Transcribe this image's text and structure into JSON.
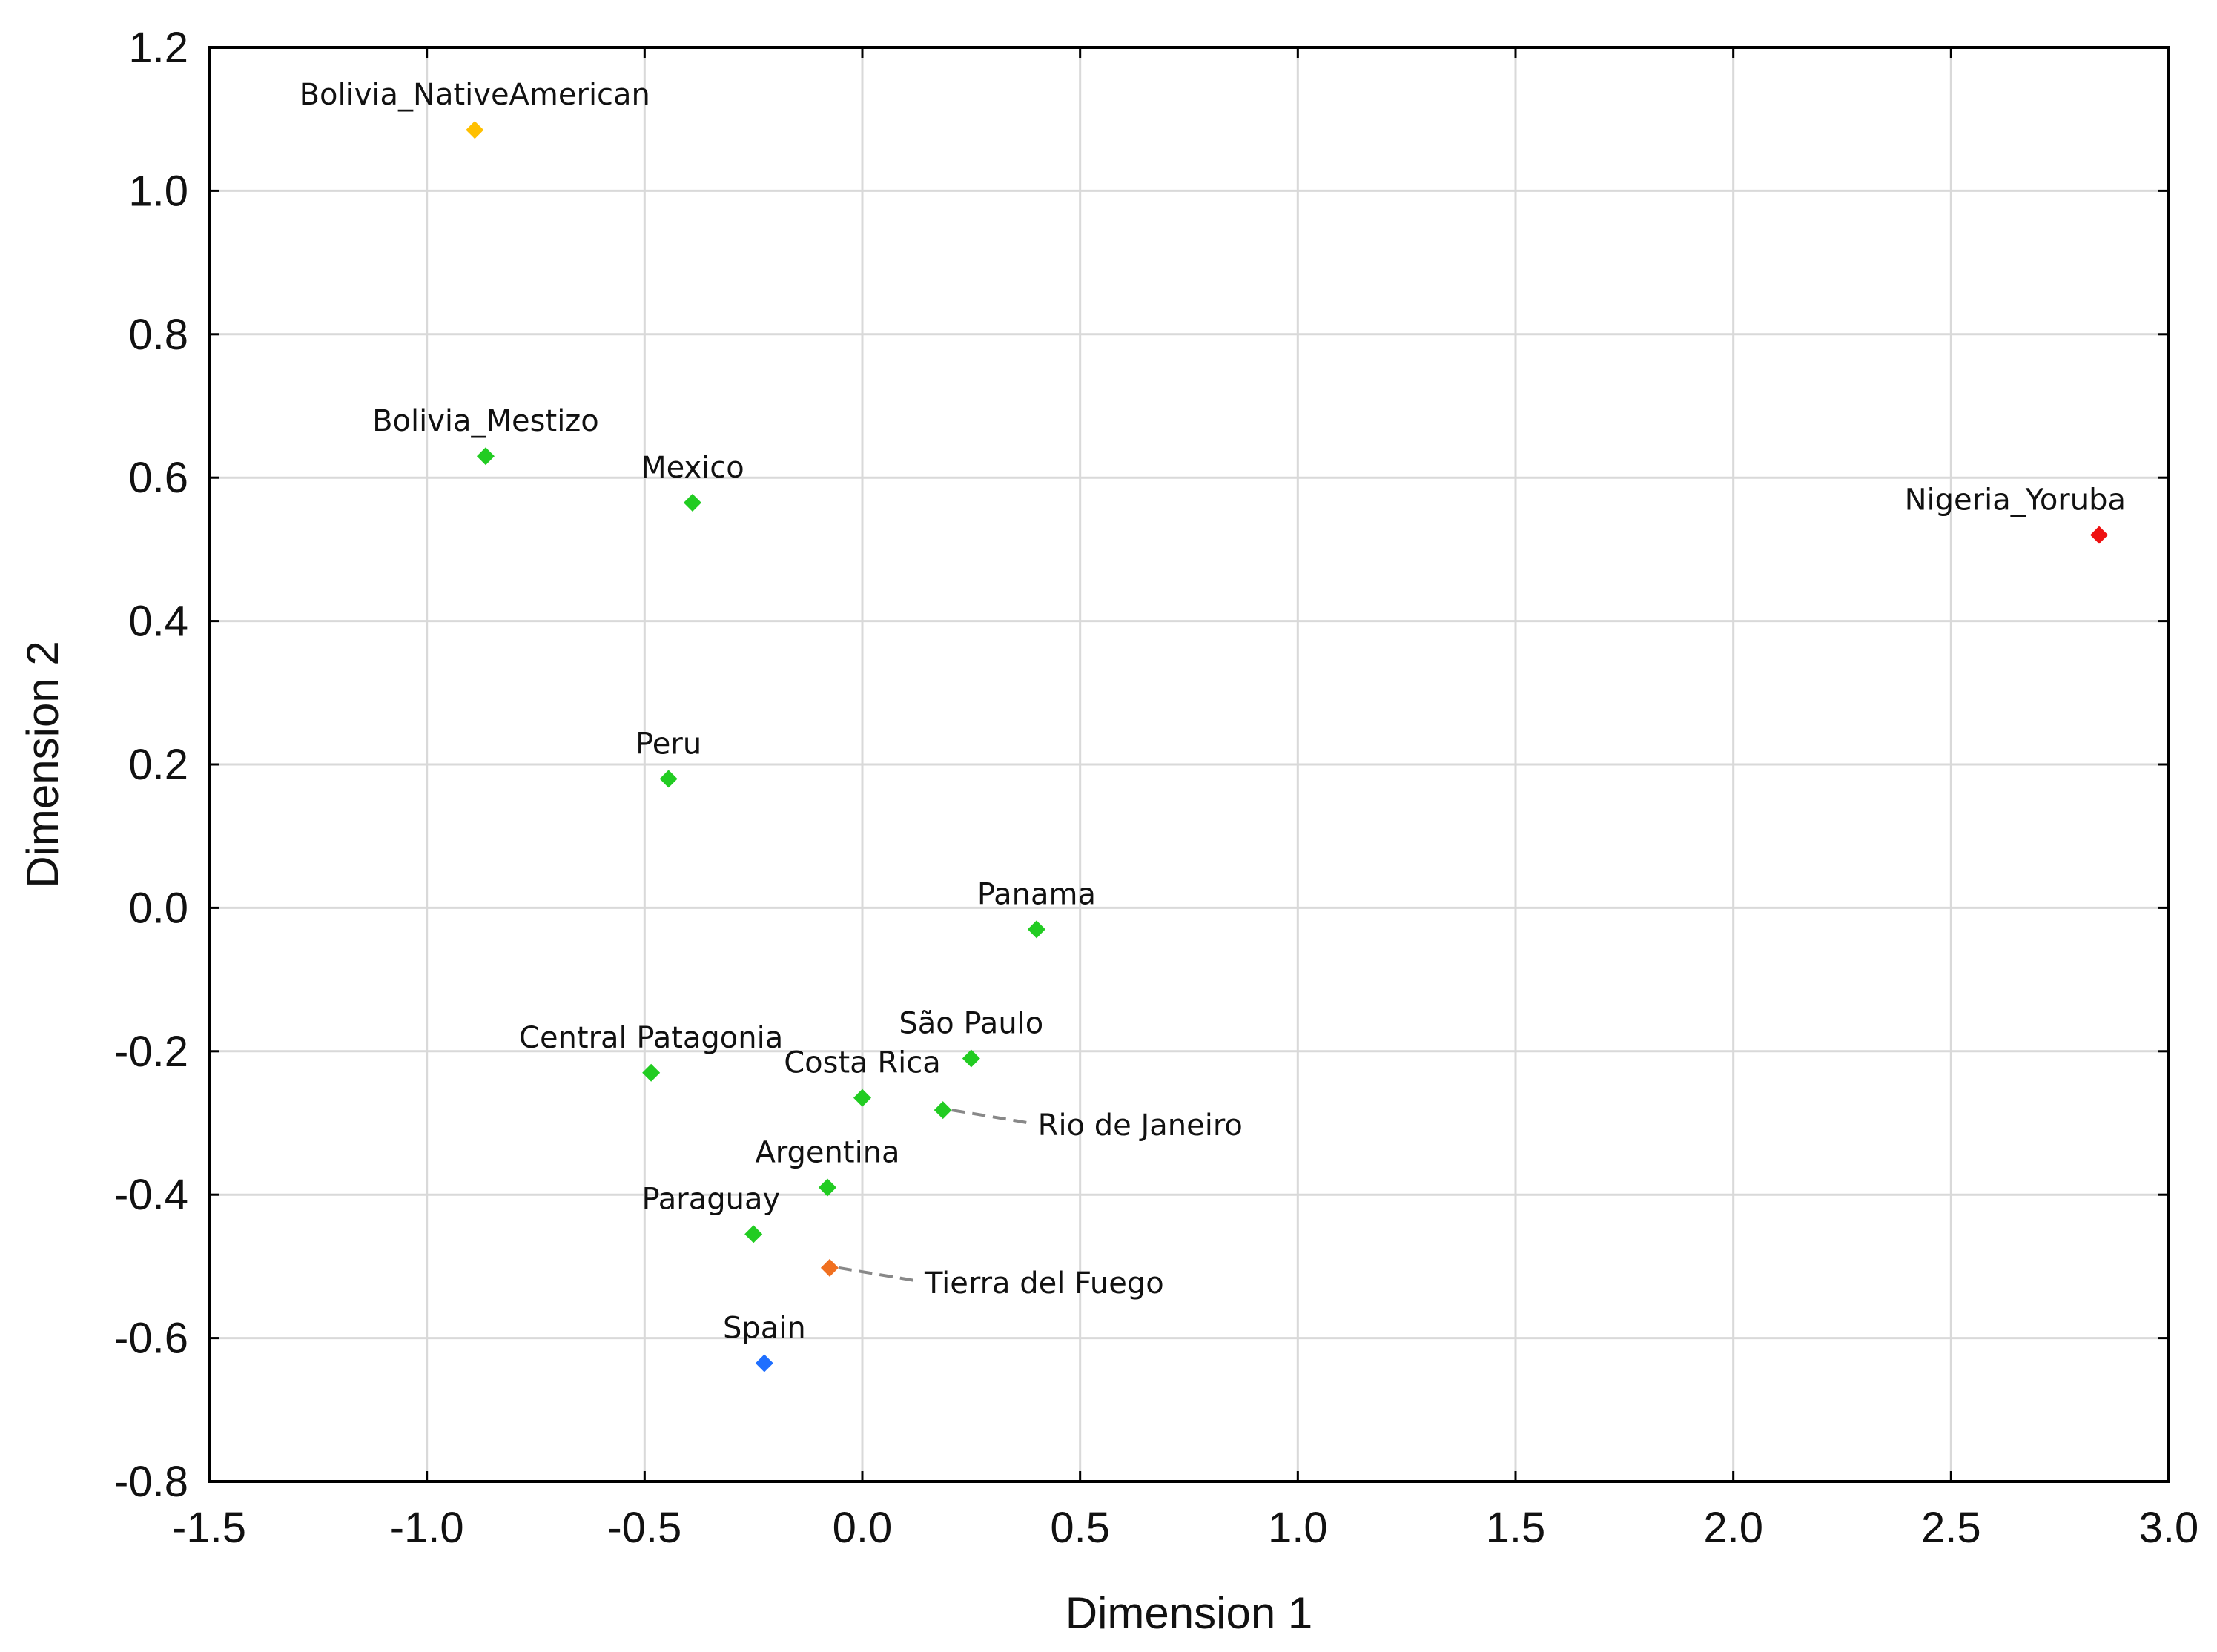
{
  "chart_data": {
    "type": "scatter",
    "title": "",
    "xlabel": "Dimension 1",
    "ylabel": "Dimension 2",
    "xlim": [
      -1.5,
      3.0
    ],
    "ylim": [
      -0.8,
      1.2
    ],
    "xticks": [
      "-1.5",
      "-1.0",
      "-0.5",
      "0.0",
      "0.5",
      "1.0",
      "1.5",
      "2.0",
      "2.5",
      "3.0"
    ],
    "yticks": [
      "-0.8",
      "-0.6",
      "-0.4",
      "-0.2",
      "0.0",
      "0.2",
      "0.4",
      "0.6",
      "0.8",
      "1.0",
      "1.2"
    ],
    "grid": true,
    "colors": {
      "green": "#22cc22",
      "yellow": "#ffc000",
      "red": "#ee1111",
      "orange": "#f07020",
      "blue": "#1f6fff"
    },
    "points": [
      {
        "label": "Bolivia_NativeAmerican",
        "x": -0.89,
        "y": 1.085,
        "color": "yellow",
        "label_pos": "above"
      },
      {
        "label": "Bolivia_Mestizo",
        "x": -0.865,
        "y": 0.63,
        "color": "green",
        "label_pos": "above"
      },
      {
        "label": "Mexico",
        "x": -0.39,
        "y": 0.565,
        "color": "green",
        "label_pos": "above"
      },
      {
        "label": "Nigeria_Yoruba",
        "x": 2.84,
        "y": 0.52,
        "color": "red",
        "label_pos": "above-left"
      },
      {
        "label": "Peru",
        "x": -0.445,
        "y": 0.18,
        "color": "green",
        "label_pos": "above"
      },
      {
        "label": "Panama",
        "x": 0.4,
        "y": -0.03,
        "color": "green",
        "label_pos": "above"
      },
      {
        "label": "Central Patagonia",
        "x": -0.485,
        "y": -0.23,
        "color": "green",
        "label_pos": "above"
      },
      {
        "label": "São Paulo",
        "x": 0.25,
        "y": -0.21,
        "color": "green",
        "label_pos": "above"
      },
      {
        "label": "Costa Rica",
        "x": 0.0,
        "y": -0.265,
        "color": "green",
        "label_pos": "above"
      },
      {
        "label": "Rio de Janeiro",
        "x": 0.185,
        "y": -0.282,
        "color": "green",
        "label_pos": "leader"
      },
      {
        "label": "Argentina",
        "x": -0.08,
        "y": -0.39,
        "color": "green",
        "label_pos": "above"
      },
      {
        "label": "Paraguay",
        "x": -0.25,
        "y": -0.455,
        "color": "green",
        "label_pos": "above-left"
      },
      {
        "label": "Tierra del Fuego",
        "x": -0.075,
        "y": -0.502,
        "color": "orange",
        "label_pos": "leader"
      },
      {
        "label": "Spain",
        "x": -0.225,
        "y": -0.635,
        "color": "blue",
        "label_pos": "above"
      }
    ]
  }
}
